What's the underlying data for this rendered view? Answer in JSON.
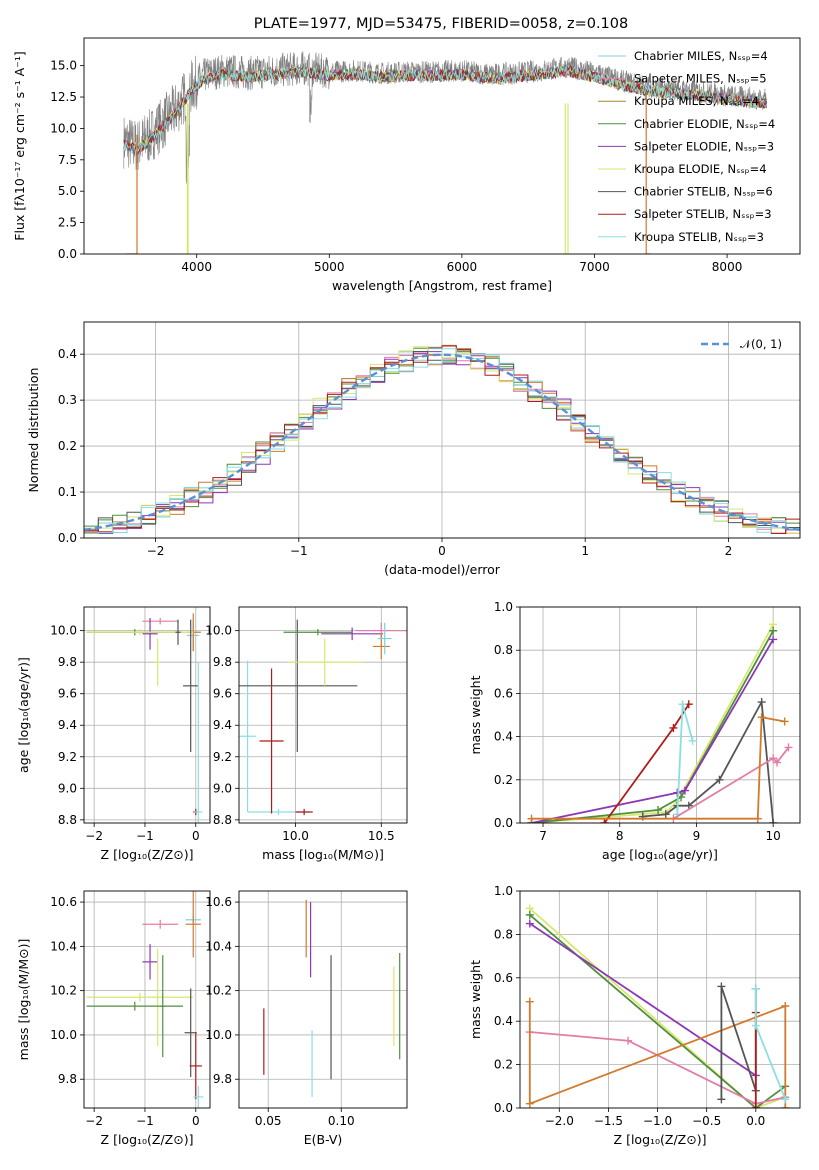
{
  "figure_title": "PLATE=1977, MJD=53475, FIBERID=0058, z=0.108",
  "colors": {
    "chabrier_miles": "#7fd1d8",
    "salpeter_miles": "#e27da6",
    "kroupa_miles": "#a6892a",
    "chabrier_elodie": "#4f8f3f",
    "salpeter_elodie": "#8d37b5",
    "kroupa_elodie": "#d7e86e",
    "chabrier_stelib": "#555555",
    "salpeter_stelib": "#b01a1a",
    "kroupa_stelib": "#8adfe1",
    "orange": "#d2792c",
    "gaussian": "#5b8fd6",
    "data_gray": "#808080"
  },
  "chart_data": [
    {
      "id": "spectrum",
      "type": "line",
      "title": "PLATE=1977, MJD=53475, FIBERID=0058, z=0.108",
      "xlabel": "wavelength [Angstrom, rest frame]",
      "ylabel": "Flux [fλ10⁻¹⁷ erg cm⁻² s⁻¹ A⁻¹]",
      "xlim": [
        3150,
        8550
      ],
      "ylim": [
        0,
        17.2
      ],
      "xticks": [
        4000,
        5000,
        6000,
        7000,
        8000
      ],
      "yticks": [
        0.0,
        2.5,
        5.0,
        7.5,
        10.0,
        12.5,
        15.0
      ],
      "grid": false,
      "legend_position": "right",
      "legend": [
        {
          "label": "Chabrier MILES, Nₛₛₚ=4",
          "color": "#7fd1d8"
        },
        {
          "label": "Salpeter MILES, Nₛₛₚ=5",
          "color": "#e27da6"
        },
        {
          "label": "Kroupa MILES, Nₛₛₚ=4",
          "color": "#a6892a"
        },
        {
          "label": "Chabrier ELODIE, Nₛₛₚ=4",
          "color": "#4f8f3f"
        },
        {
          "label": "Salpeter ELODIE, Nₛₛₚ=3",
          "color": "#8d37b5"
        },
        {
          "label": "Kroupa ELODIE, Nₛₛₚ=4",
          "color": "#d7e86e"
        },
        {
          "label": "Chabrier STELIB, Nₛₛₚ=6",
          "color": "#555555"
        },
        {
          "label": "Salpeter STELIB, Nₛₛₚ=3",
          "color": "#b01a1a"
        },
        {
          "label": "Kroupa STELIB, Nₛₛₚ=3",
          "color": "#8adfe1"
        }
      ],
      "continuum": {
        "x": [
          3450,
          3550,
          3650,
          3750,
          3850,
          3950,
          4050,
          4200,
          4400,
          4600,
          4800,
          5000,
          5200,
          5400,
          5600,
          5800,
          6000,
          6200,
          6400,
          6600,
          6800,
          7000,
          7200,
          7400,
          7600,
          7800,
          8000,
          8200,
          8300
        ],
        "y": [
          9.0,
          8.6,
          9.4,
          10.5,
          11.6,
          13.2,
          14.2,
          14.6,
          14.4,
          14.6,
          14.8,
          14.5,
          14.6,
          14.4,
          14.5,
          14.5,
          14.6,
          14.3,
          14.4,
          14.6,
          14.9,
          14.4,
          13.8,
          13.3,
          13.1,
          12.9,
          12.6,
          12.4,
          12.3
        ]
      },
      "dropouts": [
        {
          "color": "#d2792c",
          "x": [
            3470,
            3550
          ],
          "side": "left"
        },
        {
          "color": "#d7e86e",
          "x": [
            3930,
            3935
          ],
          "side": "spike"
        },
        {
          "color": "#d7e86e",
          "x": [
            6780,
            6800
          ],
          "side": "spike"
        },
        {
          "color": "#d2792c",
          "x": [
            7390,
            7420
          ],
          "side": "right"
        }
      ]
    },
    {
      "id": "residuals",
      "type": "histogram",
      "xlabel": "(data-model)/error",
      "ylabel": "Normed distribution",
      "xlim": [
        -2.5,
        2.5
      ],
      "ylim": [
        0,
        0.47
      ],
      "xticks": [
        -2,
        -1,
        0,
        1,
        2
      ],
      "yticks": [
        0.0,
        0.1,
        0.2,
        0.3,
        0.4
      ],
      "grid": true,
      "legend_position": "top-right",
      "legend": [
        {
          "label": "𝒩(0, 1)",
          "color": "#5b8fd6",
          "style": "dashed"
        }
      ],
      "bin_width": 0.1
    },
    {
      "id": "age_vs_Z",
      "type": "errorbar",
      "xlabel": "Z [log₁₀(Z/Z⊙)]",
      "ylabel": "age  [log₁₀(age/yr)]",
      "xlim": [
        -2.2,
        0.28
      ],
      "ylim": [
        8.78,
        10.15
      ],
      "xticks": [
        -2,
        -1,
        0
      ],
      "yticks": [
        8.8,
        9.0,
        9.2,
        9.4,
        9.6,
        9.8,
        10.0
      ],
      "grid": true,
      "points": [
        {
          "series": "Chabrier MILES",
          "x": -0.05,
          "xerr": 0.12,
          "y": 9.97,
          "yerr": 0.1
        },
        {
          "series": "Salpeter MILES",
          "x": -0.7,
          "xerr": 0.35,
          "y": 10.06,
          "yerr": 0.02
        },
        {
          "series": "Kroupa MILES",
          "x": -0.05,
          "xerr": 0.15,
          "y": 9.99,
          "yerr": 0.12
        },
        {
          "series": "Chabrier ELODIE",
          "x": -1.2,
          "xerr": 0.95,
          "y": 9.99,
          "yerr": 0.02
        },
        {
          "series": "Salpeter ELODIE",
          "x": -0.9,
          "xerr": 0.15,
          "y": 9.98,
          "yerr": 0.1
        },
        {
          "series": "Kroupa ELODIE",
          "x": -1.1,
          "xerr": 1.05,
          "y": 9.99,
          "yerr": 0.02
        },
        {
          "series": "Kroupa ELODIE",
          "x": -0.75,
          "xerr": 0.05,
          "y": 9.8,
          "yerr": 0.15
        },
        {
          "series": "Chabrier STELIB",
          "x": -0.1,
          "xerr": 0.15,
          "y": 9.65,
          "yerr": 0.42
        },
        {
          "series": "Salpeter STELIB",
          "x": 0.0,
          "xerr": 0.05,
          "y": 8.85,
          "yerr": 0.02
        },
        {
          "series": "Kroupa STELIB",
          "x": 0.05,
          "xerr": 0.08,
          "y": 8.85,
          "yerr": 0.95
        },
        {
          "series": "Chabrier STELIB",
          "x": -0.35,
          "xerr": 0.05,
          "y": 9.99,
          "yerr": 0.08
        }
      ]
    },
    {
      "id": "age_vs_mass",
      "type": "errorbar",
      "xlabel": "mass [log₁₀(M/M⊙)]",
      "ylabel": "",
      "xlim": [
        9.67,
        10.65
      ],
      "ylim": [
        8.78,
        10.15
      ],
      "xticks": [
        10.0,
        10.5
      ],
      "yticks": [
        8.8,
        9.0,
        9.2,
        9.4,
        9.6,
        9.8,
        10.0
      ],
      "grid": true,
      "points": [
        {
          "series": "Kroupa STELIB",
          "x": 9.72,
          "xerr": 0.05,
          "y": 9.33,
          "yerr": 0.48
        },
        {
          "series": "Kroupa STELIB",
          "x": 9.9,
          "xerr": 0.18,
          "y": 8.85,
          "yerr": 0.02
        },
        {
          "series": "Salpeter STELIB",
          "x": 9.86,
          "xerr": 0.07,
          "y": 9.3,
          "yerr": 0.46
        },
        {
          "series": "Salpeter STELIB",
          "x": 10.05,
          "xerr": 0.05,
          "y": 8.85,
          "yerr": 0.02
        },
        {
          "series": "Chabrier STELIB",
          "x": 10.01,
          "xerr": 0.35,
          "y": 9.65,
          "yerr": 0.42
        },
        {
          "series": "Chabrier ELODIE",
          "x": 10.13,
          "xerr": 0.2,
          "y": 9.99,
          "yerr": 0.02
        },
        {
          "series": "Kroupa ELODIE",
          "x": 10.17,
          "xerr": 0.22,
          "y": 9.8,
          "yerr": 0.15
        },
        {
          "series": "Salpeter ELODIE",
          "x": 10.33,
          "xerr": 0.18,
          "y": 9.98,
          "yerr": 0.04
        },
        {
          "series": "Salpeter MILES",
          "x": 10.5,
          "xerr": 0.15,
          "y": 10.0,
          "yerr": 0.05
        },
        {
          "series": "Kroupa MILES",
          "x": 10.5,
          "xerr": 0.05,
          "y": 9.9,
          "yerr": 0.08
        },
        {
          "series": "Chabrier MILES",
          "x": 10.52,
          "xerr": 0.04,
          "y": 9.95,
          "yerr": 0.1
        }
      ]
    },
    {
      "id": "weight_vs_age",
      "type": "line",
      "xlabel": "age  [log₁₀(age/yr)]",
      "ylabel": "mass weight",
      "xlim": [
        6.7,
        10.35
      ],
      "ylim": [
        0.0,
        1.0
      ],
      "xticks": [
        7,
        8,
        9,
        10
      ],
      "yticks": [
        0.0,
        0.2,
        0.4,
        0.6,
        0.8,
        1.0
      ],
      "grid": true,
      "series": [
        {
          "name": "Kroupa ELODIE",
          "color": "#d7e86e",
          "x": [
            6.85,
            8.6,
            8.75,
            10.0
          ],
          "y": [
            0.0,
            0.05,
            0.1,
            0.92
          ]
        },
        {
          "name": "Chabrier ELODIE",
          "color": "#4f8f3f",
          "x": [
            6.85,
            8.5,
            8.8,
            10.0
          ],
          "y": [
            0.0,
            0.06,
            0.12,
            0.89
          ]
        },
        {
          "name": "Salpeter ELODIE",
          "color": "#8d37b5",
          "x": [
            6.85,
            8.75,
            8.85,
            10.0
          ],
          "y": [
            0.0,
            0.14,
            0.15,
            0.85
          ]
        },
        {
          "name": "Chabrier STELIB",
          "color": "#555555",
          "x": [
            8.3,
            8.6,
            8.75,
            8.9,
            9.3,
            9.85,
            10.0
          ],
          "y": [
            0.03,
            0.04,
            0.08,
            0.08,
            0.2,
            0.56,
            0.0
          ]
        },
        {
          "name": "Salpeter STELIB",
          "color": "#b01a1a",
          "x": [
            7.8,
            8.7,
            8.9
          ],
          "y": [
            0.0,
            0.44,
            0.55
          ]
        },
        {
          "name": "Kroupa STELIB",
          "color": "#8adfe1",
          "x": [
            8.75,
            8.82,
            8.95
          ],
          "y": [
            0.04,
            0.55,
            0.38
          ]
        },
        {
          "name": "Salpeter MILES",
          "color": "#e27da6",
          "x": [
            8.7,
            10.0,
            10.05,
            10.2
          ],
          "y": [
            0.02,
            0.3,
            0.28,
            0.35
          ]
        },
        {
          "name": "Kroupa MILES",
          "color": "#d2792c",
          "x": [
            6.85,
            9.8,
            9.85,
            10.15
          ],
          "y": [
            0.02,
            0.02,
            0.49,
            0.47
          ]
        }
      ]
    },
    {
      "id": "mass_vs_Z",
      "type": "errorbar",
      "xlabel": "Z [log₁₀(Z/Z⊙)]",
      "ylabel": "mass [log₁₀(M/M⊙)]",
      "xlim": [
        -2.2,
        0.28
      ],
      "ylim": [
        9.67,
        10.65
      ],
      "xticks": [
        -2,
        -1,
        0
      ],
      "yticks": [
        9.8,
        10.0,
        10.2,
        10.4,
        10.6
      ],
      "grid": true,
      "points": [
        {
          "series": "Salpeter MILES",
          "x": -0.7,
          "xerr": 0.35,
          "y": 10.5,
          "yerr": 0.02
        },
        {
          "series": "Chabrier MILES",
          "x": -0.05,
          "xerr": 0.15,
          "y": 10.52,
          "yerr": 0.02
        },
        {
          "series": "Kroupa MILES",
          "x": -0.05,
          "xerr": 0.15,
          "y": 10.5,
          "yerr": 0.15
        },
        {
          "series": "Salpeter ELODIE",
          "x": -0.9,
          "xerr": 0.15,
          "y": 10.33,
          "yerr": 0.08
        },
        {
          "series": "Kroupa ELODIE",
          "x": -1.1,
          "xerr": 1.05,
          "y": 10.17,
          "yerr": 0.02
        },
        {
          "series": "Kroupa ELODIE",
          "x": -0.75,
          "xerr": 0.05,
          "y": 10.17,
          "yerr": 0.22
        },
        {
          "series": "Chabrier ELODIE",
          "x": -1.2,
          "xerr": 0.95,
          "y": 10.13,
          "yerr": 0.02
        },
        {
          "series": "Chabrier ELODIE",
          "x": -0.65,
          "xerr": 0.05,
          "y": 10.13,
          "yerr": 0.23
        },
        {
          "series": "Chabrier STELIB",
          "x": -0.1,
          "xerr": 0.12,
          "y": 10.01,
          "yerr": 0.2
        },
        {
          "series": "Salpeter STELIB",
          "x": 0.0,
          "xerr": 0.12,
          "y": 9.86,
          "yerr": 0.15
        },
        {
          "series": "Kroupa STELIB",
          "x": 0.05,
          "xerr": 0.1,
          "y": 9.72,
          "yerr": 0.05
        }
      ]
    },
    {
      "id": "mass_vs_ebv",
      "type": "errorbar",
      "xlabel": "E(B-V)",
      "ylabel": "",
      "xlim": [
        0.03,
        0.145
      ],
      "ylim": [
        9.67,
        10.65
      ],
      "xticks": [
        0.05,
        0.1
      ],
      "xtick_labels": [
        "0.05",
        "0.10"
      ],
      "yticks": [
        9.8,
        10.0,
        10.2,
        10.4,
        10.6
      ],
      "grid": true,
      "points": [
        {
          "series": "Salpeter STELIB",
          "x": 0.047,
          "y": 9.97,
          "yerr": 0.15
        },
        {
          "series": "Kroupa MILES",
          "x": 0.076,
          "y": 10.48,
          "yerr": 0.13
        },
        {
          "series": "Salpeter ELODIE",
          "x": 0.079,
          "y": 10.43,
          "yerr": 0.17
        },
        {
          "series": "Kroupa STELIB",
          "x": 0.08,
          "y": 9.87,
          "yerr": 0.15
        },
        {
          "series": "Chabrier STELIB",
          "x": 0.093,
          "y": 10.08,
          "yerr": 0.28
        },
        {
          "series": "Kroupa ELODIE",
          "x": 0.136,
          "y": 10.13,
          "yerr": 0.18
        },
        {
          "series": "Chabrier ELODIE",
          "x": 0.14,
          "y": 10.13,
          "yerr": 0.24
        }
      ]
    },
    {
      "id": "weight_vs_Z",
      "type": "line",
      "xlabel": "Z [log₁₀(Z/Z⊙)]",
      "ylabel": "mass weight",
      "xlim": [
        -2.4,
        0.45
      ],
      "ylim": [
        0.0,
        1.0
      ],
      "xticks": [
        -2.0,
        -1.5,
        -1.0,
        -0.5,
        0.0
      ],
      "xtick_labels": [
        "−2.0",
        "−1.5",
        "−1.0",
        "−0.5",
        "0.0"
      ],
      "yticks": [
        0.0,
        0.2,
        0.4,
        0.6,
        0.8,
        1.0
      ],
      "grid": true,
      "series": [
        {
          "name": "Kroupa ELODIE",
          "color": "#d7e86e",
          "x": [
            -2.3,
            0.0,
            0.3
          ],
          "y": [
            0.92,
            0.0,
            0.05
          ]
        },
        {
          "name": "Chabrier ELODIE",
          "color": "#4f8f3f",
          "x": [
            -2.3,
            0.0,
            0.3
          ],
          "y": [
            0.89,
            0.0,
            0.1
          ]
        },
        {
          "name": "Salpeter ELODIE",
          "color": "#8d37b5",
          "x": [
            -2.3,
            0.0
          ],
          "y": [
            0.85,
            0.15
          ]
        },
        {
          "name": "Salpeter MILES",
          "color": "#e27da6",
          "x": [
            -2.3,
            -1.3,
            0.0,
            0.3
          ],
          "y": [
            0.35,
            0.31,
            0.02,
            0.05
          ]
        },
        {
          "name": "Kroupa MILES",
          "color": "#d2792c",
          "x": [
            -2.3,
            -2.3,
            0.3,
            0.3
          ],
          "y": [
            0.49,
            0.02,
            0.47,
            0.0
          ]
        },
        {
          "name": "Chabrier STELIB",
          "color": "#555555",
          "x": [
            -0.35,
            -0.35,
            0.0,
            0.0
          ],
          "y": [
            0.04,
            0.56,
            0.08,
            0.55
          ]
        },
        {
          "name": "Salpeter STELIB",
          "color": "#b01a1a",
          "x": [
            0.0,
            0.0
          ],
          "y": [
            0.0,
            0.44
          ]
        },
        {
          "name": "Kroupa STELIB",
          "color": "#8adfe1",
          "x": [
            0.0,
            0.0,
            0.3
          ],
          "y": [
            0.55,
            0.38,
            0.04
          ]
        }
      ]
    }
  ]
}
